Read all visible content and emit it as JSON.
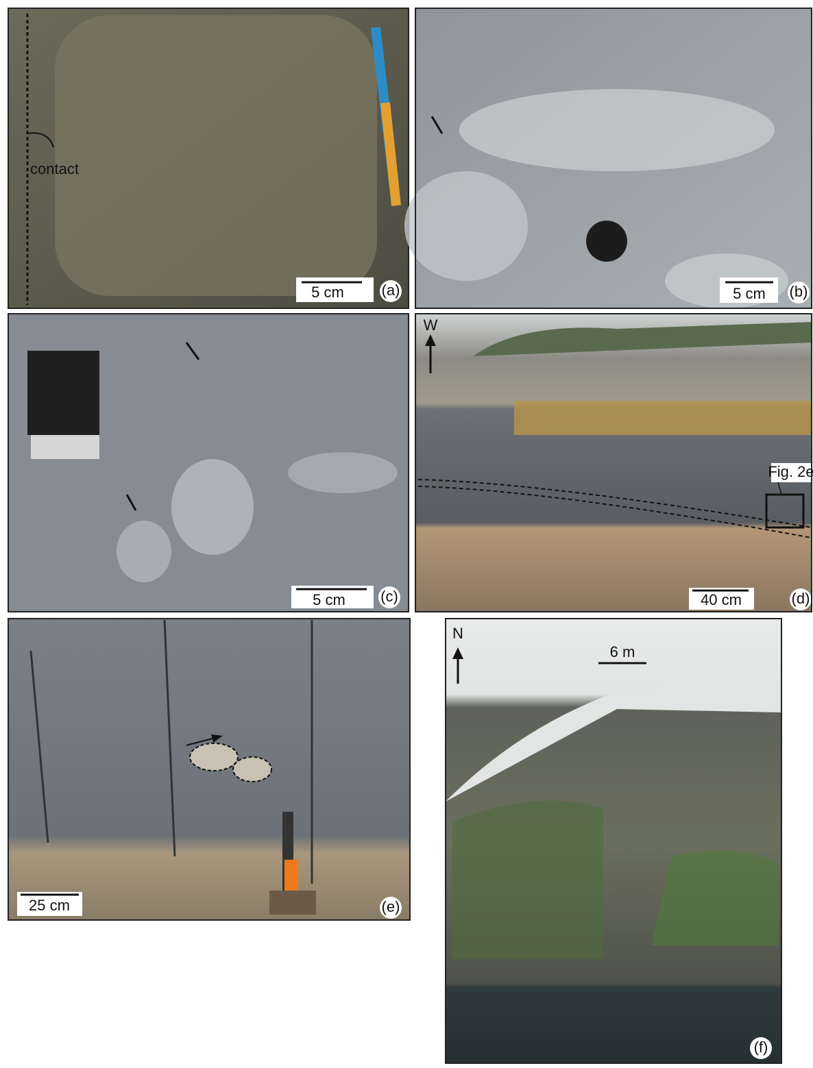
{
  "panels": [
    {
      "label": "(a)",
      "scale_bar": "5 cm",
      "annotations": [
        "contact"
      ]
    },
    {
      "label": "(b)",
      "scale_bar": "5 cm"
    },
    {
      "label": "(c)",
      "scale_bar": "5 cm"
    },
    {
      "label": "(d)",
      "scale_bar": "40 cm",
      "orientation": "W",
      "annotations": [
        "Fig. 2e"
      ]
    },
    {
      "label": "(e)",
      "scale_bar": "25 cm"
    },
    {
      "label": "(f)",
      "scale_bar": "6 m",
      "orientation": "N"
    }
  ]
}
